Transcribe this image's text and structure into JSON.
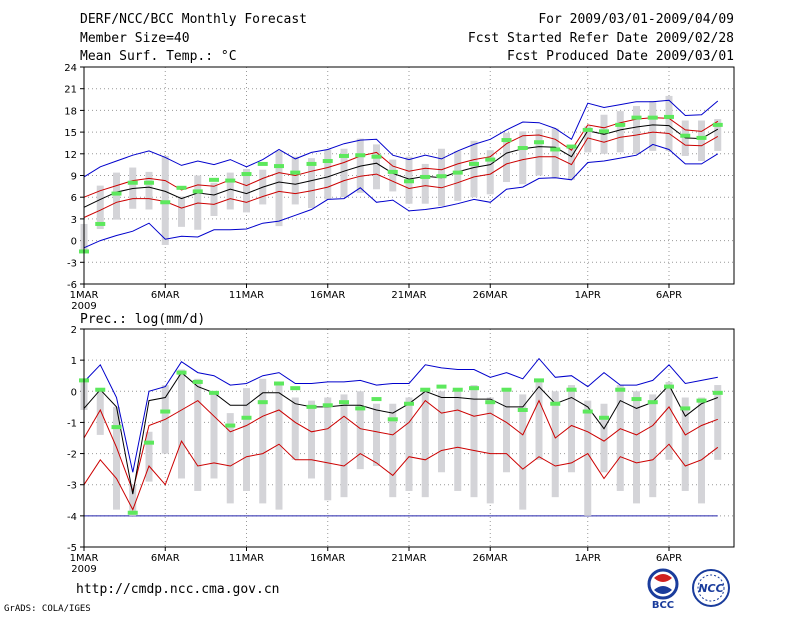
{
  "header": {
    "title": "DERF/NCC/BCC Monthly Forecast",
    "member_size": "Member Size=40",
    "variable": "Mean Surf. Temp.: °C",
    "period": "For 2009/03/01-2009/04/09",
    "started": "Fcst Started Refer Date 2009/02/28",
    "produced": "Fcst Produced Date 2009/03/01"
  },
  "footer": {
    "url": "http://cmdp.ncc.cma.gov.cn",
    "grads": "GrADS: COLA/IGES",
    "logo_left": "BCC",
    "logo_right": "NCC"
  },
  "colors": {
    "obs": "#5de85d",
    "bar": "#d4d4d8",
    "ens": "#0000cc",
    "pct": "#cc0000",
    "mean": "#000000",
    "grid": "#999999"
  },
  "chart_data": [
    {
      "type": "line",
      "title": "Mean Surf. Temp.: °C",
      "ylim": [
        -6,
        24
      ],
      "yticks": [
        -6,
        -3,
        0,
        3,
        6,
        9,
        12,
        15,
        18,
        21,
        24
      ],
      "xlim": [
        1,
        41
      ],
      "xticks": [
        {
          "day": 1,
          "label": "1MAR",
          "sub": "2009"
        },
        {
          "day": 6,
          "label": "6MAR"
        },
        {
          "day": 11,
          "label": "11MAR"
        },
        {
          "day": 16,
          "label": "16MAR"
        },
        {
          "day": 21,
          "label": "21MAR"
        },
        {
          "day": 26,
          "label": "26MAR"
        },
        {
          "day": 32,
          "label": "1APR"
        },
        {
          "day": 37,
          "label": "6APR"
        }
      ],
      "days": [
        1,
        2,
        3,
        4,
        5,
        6,
        7,
        8,
        9,
        10,
        11,
        12,
        13,
        14,
        15,
        16,
        17,
        18,
        19,
        20,
        21,
        22,
        23,
        24,
        25,
        26,
        27,
        28,
        29,
        30,
        31,
        32,
        33,
        34,
        35,
        36,
        37,
        38,
        39,
        40
      ],
      "observed": [
        -1.5,
        2.3,
        6.5,
        8.0,
        8.0,
        5.3,
        7.3,
        6.8,
        8.4,
        8.3,
        9.2,
        10.6,
        10.3,
        9.4,
        10.6,
        11.0,
        11.7,
        11.8,
        11.6,
        9.5,
        8.2,
        8.8,
        8.9,
        9.4,
        10.6,
        11.2,
        13.9,
        12.8,
        13.6,
        12.6,
        13.0,
        15.3,
        15.1,
        16.0,
        17.0,
        17.0,
        17.1,
        14.5,
        14.2,
        16.0
      ],
      "ens_max": [
        8.8,
        10.2,
        11.0,
        11.8,
        12.4,
        11.5,
        10.4,
        11.0,
        10.5,
        11.2,
        10.2,
        11.2,
        12.6,
        11.3,
        12.2,
        12.6,
        13.4,
        13.9,
        14.0,
        11.8,
        11.2,
        11.8,
        11.3,
        12.4,
        13.3,
        14.0,
        15.3,
        16.4,
        16.3,
        15.5,
        14.0,
        19.0,
        18.4,
        18.8,
        19.2,
        19.2,
        19.4,
        17.3,
        17.4,
        19.3
      ],
      "p80": [
        6.0,
        6.9,
        7.6,
        8.3,
        8.6,
        8.3,
        7.0,
        7.7,
        7.5,
        8.4,
        7.6,
        8.6,
        9.4,
        9.0,
        9.6,
        10.1,
        10.8,
        11.7,
        12.2,
        10.3,
        9.6,
        10.0,
        9.8,
        10.6,
        11.2,
        11.6,
        13.4,
        14.5,
        14.6,
        14.0,
        12.5,
        16.0,
        15.6,
        16.3,
        16.8,
        17.0,
        16.9,
        15.3,
        15.1,
        16.5
      ],
      "mean": [
        4.6,
        5.7,
        6.7,
        7.2,
        7.4,
        6.8,
        5.8,
        6.6,
        6.3,
        7.1,
        6.5,
        7.4,
        8.1,
        7.8,
        8.3,
        8.8,
        9.6,
        10.3,
        10.7,
        9.3,
        8.5,
        8.9,
        8.7,
        9.5,
        10.1,
        10.5,
        12.1,
        12.7,
        13.0,
        12.9,
        11.6,
        15.2,
        14.7,
        15.3,
        15.7,
        16.0,
        15.9,
        14.2,
        14.1,
        15.4
      ],
      "p20": [
        3.2,
        4.2,
        5.3,
        5.8,
        5.8,
        5.4,
        4.5,
        5.2,
        5.0,
        5.8,
        5.3,
        6.1,
        6.8,
        6.5,
        6.9,
        7.4,
        8.3,
        8.9,
        9.2,
        8.2,
        7.2,
        7.6,
        7.3,
        8.0,
        8.8,
        9.2,
        10.6,
        11.2,
        11.6,
        11.6,
        10.5,
        14.2,
        13.6,
        14.3,
        14.6,
        15.0,
        14.8,
        13.2,
        13.1,
        14.4
      ],
      "ens_min": [
        -1.0,
        0.0,
        0.7,
        1.3,
        2.4,
        0.2,
        0.6,
        0.5,
        1.5,
        1.5,
        1.6,
        2.4,
        2.7,
        3.5,
        4.3,
        5.7,
        5.8,
        7.3,
        5.3,
        5.6,
        4.1,
        4.3,
        4.6,
        5.1,
        5.7,
        5.3,
        7.1,
        7.4,
        8.6,
        8.7,
        8.4,
        10.8,
        11.0,
        11.4,
        11.8,
        13.3,
        12.6,
        10.6,
        10.6,
        12.0
      ],
      "box_upper": [
        2.3,
        7.6,
        9.4,
        10.1,
        9.5,
        11.7,
        6.1,
        9.0,
        8.0,
        9.4,
        9.9,
        9.8,
        12.4,
        11.6,
        11.4,
        12.6,
        12.7,
        14.1,
        13.3,
        11.2,
        11.6,
        10.6,
        12.7,
        12.4,
        13.8,
        12.5,
        14.9,
        15.1,
        15.4,
        15.5,
        13.1,
        15.8,
        17.4,
        17.9,
        18.6,
        19.3,
        20.0,
        16.6,
        16.6,
        16.8
      ],
      "box_lower": [
        -1.5,
        1.6,
        2.9,
        4.4,
        4.3,
        -0.6,
        1.9,
        1.5,
        3.4,
        4.3,
        3.9,
        5.0,
        2.0,
        5.0,
        4.5,
        5.7,
        6.0,
        6.6,
        7.1,
        6.8,
        5.1,
        5.1,
        4.8,
        5.5,
        6.0,
        6.4,
        8.1,
        7.8,
        9.0,
        8.6,
        8.4,
        12.2,
        12.0,
        12.2,
        12.0,
        12.4,
        12.4,
        11.7,
        11.0,
        12.4
      ]
    },
    {
      "type": "line",
      "title": "Prec.: log(mm/d)",
      "ylim": [
        -5,
        2
      ],
      "yticks": [
        -5,
        -4,
        -3,
        -2,
        -1,
        0,
        1,
        2
      ],
      "xlim": [
        1,
        41
      ],
      "xticks": [
        {
          "day": 1,
          "label": "1MAR",
          "sub": "2009"
        },
        {
          "day": 6,
          "label": "6MAR"
        },
        {
          "day": 11,
          "label": "11MAR"
        },
        {
          "day": 16,
          "label": "16MAR"
        },
        {
          "day": 21,
          "label": "21MAR"
        },
        {
          "day": 26,
          "label": "26MAR"
        },
        {
          "day": 32,
          "label": "1APR"
        },
        {
          "day": 37,
          "label": "6APR"
        }
      ],
      "days": [
        1,
        2,
        3,
        4,
        5,
        6,
        7,
        8,
        9,
        10,
        11,
        12,
        13,
        14,
        15,
        16,
        17,
        18,
        19,
        20,
        21,
        22,
        23,
        24,
        25,
        26,
        27,
        28,
        29,
        30,
        31,
        32,
        33,
        34,
        35,
        36,
        37,
        38,
        39,
        40
      ],
      "reference_line": -4,
      "observed": [
        0.35,
        0.05,
        -1.15,
        -3.9,
        -1.65,
        -0.65,
        0.6,
        0.3,
        -0.05,
        -1.1,
        -0.85,
        -0.35,
        0.25,
        0.1,
        -0.5,
        -0.45,
        -0.35,
        -0.55,
        -0.25,
        -0.9,
        -0.4,
        0.05,
        0.15,
        0.05,
        0.1,
        -0.35,
        0.05,
        -0.6,
        0.35,
        -0.4,
        0.05,
        -0.65,
        -0.85,
        0.05,
        -0.25,
        -0.35,
        0.15,
        -0.55,
        -0.3,
        -0.05
      ],
      "ens_max": [
        0.3,
        0.85,
        -0.2,
        -2.6,
        0.0,
        0.15,
        0.95,
        0.6,
        0.5,
        0.2,
        0.25,
        0.5,
        0.6,
        0.25,
        0.25,
        0.3,
        0.3,
        0.35,
        0.2,
        0.25,
        0.25,
        0.85,
        0.75,
        0.7,
        0.7,
        0.45,
        0.6,
        0.4,
        1.05,
        0.45,
        0.5,
        0.15,
        0.6,
        0.2,
        0.2,
        0.35,
        0.85,
        0.25,
        0.35,
        0.45
      ],
      "mean": [
        -0.55,
        0.05,
        -0.5,
        -3.3,
        -0.3,
        -0.2,
        0.6,
        0.15,
        -0.05,
        -0.45,
        -0.45,
        -0.05,
        -0.05,
        -0.4,
        -0.5,
        -0.5,
        -0.45,
        -0.45,
        -0.6,
        -0.7,
        -0.4,
        0.0,
        -0.2,
        -0.2,
        -0.25,
        -0.25,
        -0.5,
        -0.5,
        0.15,
        -0.4,
        -0.2,
        -0.5,
        -1.2,
        -0.3,
        -0.55,
        -0.35,
        0.2,
        -0.8,
        -0.4,
        -0.2
      ],
      "p80": [
        -1.5,
        -0.6,
        -1.8,
        -3.2,
        -1.1,
        -0.9,
        -0.6,
        -0.3,
        -0.8,
        -1.3,
        -1.1,
        -0.8,
        -0.6,
        -1.0,
        -1.3,
        -1.2,
        -0.8,
        -1.2,
        -1.3,
        -1.4,
        -1.0,
        -0.3,
        -0.7,
        -0.6,
        -0.8,
        -0.7,
        -1.0,
        -1.4,
        -0.3,
        -1.5,
        -1.1,
        -1.3,
        -1.6,
        -1.2,
        -1.4,
        -1.1,
        -0.5,
        -1.4,
        -1.1,
        -0.9
      ],
      "p20": [
        -3.0,
        -2.2,
        -2.8,
        -3.8,
        -2.4,
        -3.0,
        -1.6,
        -2.4,
        -2.3,
        -2.4,
        -2.1,
        -2.0,
        -1.7,
        -2.2,
        -2.2,
        -2.3,
        -2.4,
        -2.0,
        -2.3,
        -2.7,
        -2.1,
        -2.2,
        -1.9,
        -1.8,
        -1.9,
        -2.0,
        -2.0,
        -2.5,
        -2.1,
        -2.4,
        -2.3,
        -2.0,
        -2.8,
        -2.1,
        -2.3,
        -2.2,
        -1.7,
        -2.4,
        -2.2,
        -1.8
      ],
      "box_upper": [
        0.3,
        0.1,
        -0.5,
        -3.0,
        -1.3,
        0.2,
        0.7,
        0.4,
        0.0,
        -0.7,
        0.1,
        0.4,
        0.3,
        -0.2,
        -0.3,
        -0.2,
        -0.1,
        0.0,
        -0.4,
        -0.4,
        -0.2,
        0.0,
        0.0,
        0.1,
        0.2,
        -0.2,
        0.1,
        -0.1,
        0.3,
        0.0,
        0.2,
        -0.3,
        -0.4,
        0.2,
        0.0,
        -0.1,
        0.3,
        -0.2,
        -0.2,
        0.2
      ],
      "box_lower": [
        -0.6,
        -1.4,
        -3.8,
        -4.0,
        -2.9,
        -2.0,
        -2.8,
        -3.2,
        -2.8,
        -3.6,
        -3.2,
        -3.6,
        -3.8,
        -2.2,
        -2.8,
        -3.5,
        -3.4,
        -2.5,
        -2.4,
        -3.4,
        -3.2,
        -3.4,
        -2.6,
        -3.2,
        -3.4,
        -3.6,
        -2.6,
        -3.8,
        -2.2,
        -3.4,
        -2.6,
        -4.0,
        -2.6,
        -3.2,
        -3.6,
        -3.4,
        -2.2,
        -3.2,
        -3.6,
        -2.2
      ]
    }
  ]
}
